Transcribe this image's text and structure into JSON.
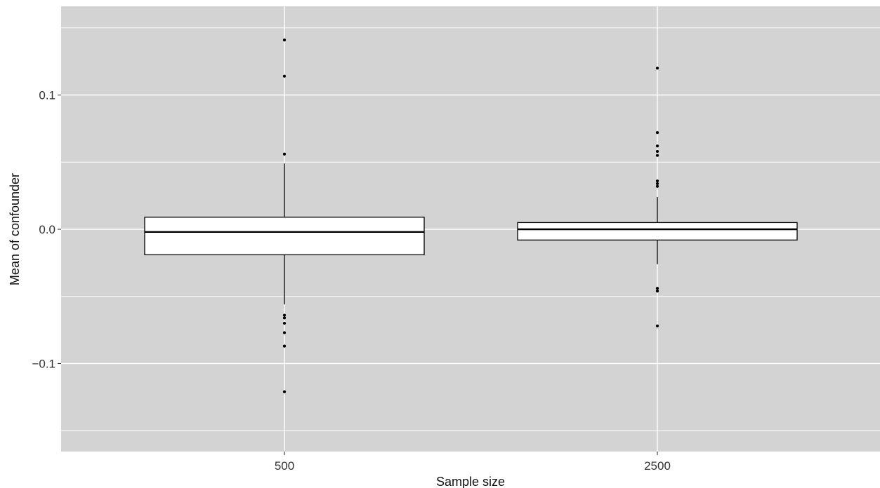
{
  "chart_data": {
    "type": "boxplot",
    "title": "",
    "xlabel": "Sample size",
    "ylabel": "Mean of confounder",
    "categories": [
      "500",
      "2500"
    ],
    "ylim": [
      -0.16,
      0.165
    ],
    "y_ticks": [
      {
        "value": -0.1,
        "label": "−0.1"
      },
      {
        "value": 0.0,
        "label": "0.0"
      },
      {
        "value": 0.1,
        "label": "0.1"
      }
    ],
    "y_minor_gridlines": [
      -0.15,
      -0.05,
      0.05,
      0.15
    ],
    "grid": true,
    "legend": "none",
    "background_color": "#d3d3d3",
    "gridline_color": "#ffffff",
    "box_fill": "#ffffff",
    "box_stroke": "#000000",
    "boxes": [
      {
        "category": "500",
        "whisker_low": -0.056,
        "q1": -0.019,
        "median": -0.002,
        "q3": 0.009,
        "whisker_high": 0.049,
        "outliers": [
          0.141,
          0.114,
          0.056,
          -0.064,
          -0.066,
          -0.07,
          -0.077,
          -0.087,
          -0.121
        ]
      },
      {
        "category": "2500",
        "whisker_low": -0.026,
        "q1": -0.008,
        "median": 0.0,
        "q3": 0.005,
        "whisker_high": 0.024,
        "outliers": [
          0.12,
          0.072,
          0.062,
          0.058,
          0.055,
          0.036,
          0.034,
          0.032,
          -0.044,
          -0.046,
          -0.072
        ]
      }
    ]
  }
}
